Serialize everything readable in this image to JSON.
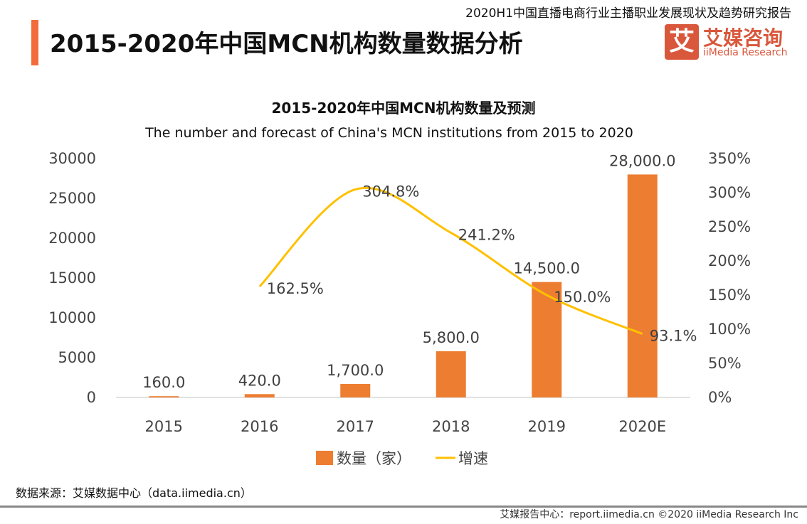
{
  "header": {
    "report": "2020H1中国直播电商行业主播职业发展现状及趋势研究报告",
    "title": "2015-2020年中国MCN机构数量数据分析",
    "logo_mark": "艾",
    "logo_cn": "艾媒咨询",
    "logo_en": "iiMedia Research"
  },
  "chart_data": {
    "type": "bar+line",
    "title": "2015-2020年中国MCN机构数量及预测",
    "subtitle": "The number and forecast of China's MCN institutions from 2015 to 2020",
    "categories": [
      "2015",
      "2016",
      "2017",
      "2018",
      "2019",
      "2020E"
    ],
    "series": [
      {
        "name": "数量（家）",
        "type": "bar",
        "axis": "left",
        "color": "#ed7d31",
        "values": [
          160,
          420,
          1700,
          5800,
          14500,
          28000
        ],
        "labels": [
          "160.0",
          "420.0",
          "1,700.0",
          "5,800.0",
          "14,500.0",
          "28,000.0"
        ]
      },
      {
        "name": "增速",
        "type": "line",
        "axis": "right",
        "color": "#ffc000",
        "values": [
          null,
          162.5,
          304.8,
          241.2,
          150.0,
          93.1
        ],
        "labels": [
          "",
          "162.5%",
          "304.8%",
          "241.2%",
          "150.0%",
          "93.1%"
        ]
      }
    ],
    "ylim": [
      0,
      30000
    ],
    "y_ticks": [
      "0",
      "5000",
      "10000",
      "15000",
      "20000",
      "25000",
      "30000"
    ],
    "y2lim": [
      0,
      350
    ],
    "y2_ticks": [
      "0%",
      "50%",
      "100%",
      "150%",
      "200%",
      "250%",
      "300%",
      "350%"
    ],
    "grid": false,
    "legend": "bottom"
  },
  "footer": {
    "source": "数据来源：艾媒数据中心（data.iimedia.cn）",
    "copyright": "艾媒报告中心：report.iimedia.cn   ©2020  iiMedia Research  Inc"
  }
}
